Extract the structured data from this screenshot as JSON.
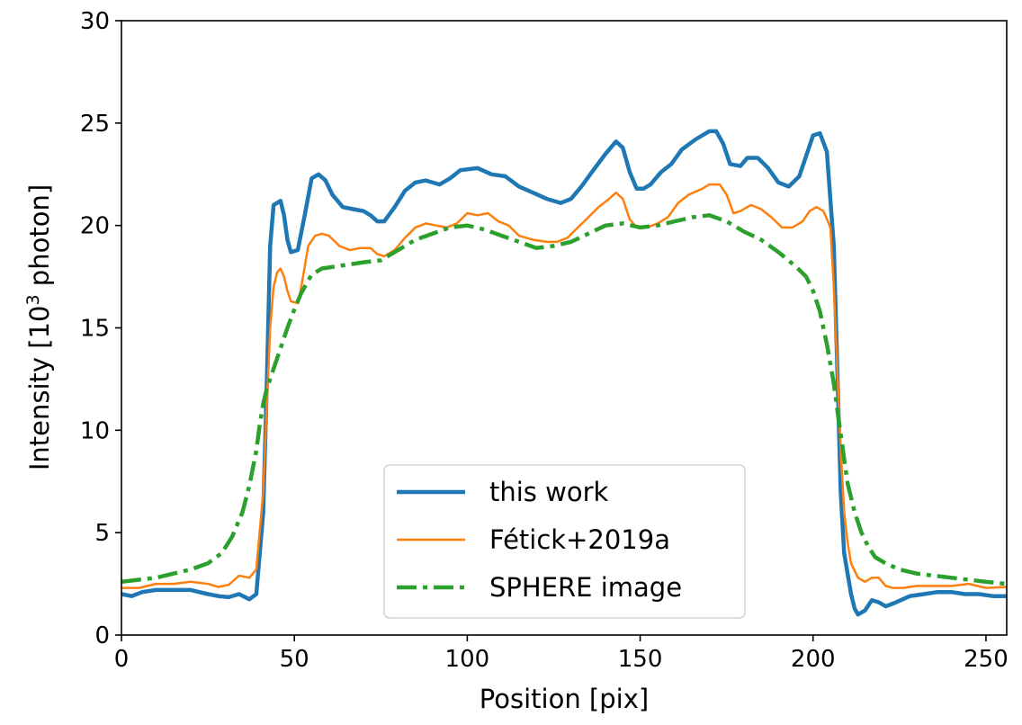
{
  "chart_data": {
    "type": "line",
    "title": "",
    "xlabel": "Position [pix]",
    "ylabel_main": "Intensity [10",
    "ylabel_sup": "3",
    "ylabel_tail": " photon]",
    "xlim": [
      0,
      256
    ],
    "ylim": [
      0,
      30
    ],
    "xticks": [
      0,
      50,
      100,
      150,
      200,
      250
    ],
    "yticks": [
      0,
      5,
      10,
      15,
      20,
      25,
      30
    ],
    "grid": false,
    "legend_position": "lower-center",
    "series": [
      {
        "name": "this work",
        "color": "#1f77b4",
        "style": "solid-thick",
        "points": [
          [
            0,
            2.0
          ],
          [
            3,
            1.9
          ],
          [
            6,
            2.1
          ],
          [
            10,
            2.2
          ],
          [
            15,
            2.2
          ],
          [
            20,
            2.2
          ],
          [
            25,
            2.0
          ],
          [
            28,
            1.9
          ],
          [
            31,
            1.85
          ],
          [
            34,
            2.0
          ],
          [
            37,
            1.75
          ],
          [
            39,
            2.0
          ],
          [
            41,
            6.0
          ],
          [
            42,
            12.0
          ],
          [
            43,
            19.0
          ],
          [
            44,
            21.0
          ],
          [
            46,
            21.2
          ],
          [
            47,
            20.5
          ],
          [
            48,
            19.3
          ],
          [
            49,
            18.7
          ],
          [
            51,
            18.8
          ],
          [
            53,
            20.5
          ],
          [
            55,
            22.3
          ],
          [
            57,
            22.5
          ],
          [
            59,
            22.2
          ],
          [
            61,
            21.5
          ],
          [
            64,
            20.9
          ],
          [
            67,
            20.8
          ],
          [
            70,
            20.7
          ],
          [
            72,
            20.5
          ],
          [
            74,
            20.2
          ],
          [
            76,
            20.2
          ],
          [
            79,
            20.9
          ],
          [
            82,
            21.7
          ],
          [
            85,
            22.1
          ],
          [
            88,
            22.2
          ],
          [
            92,
            22.0
          ],
          [
            95,
            22.3
          ],
          [
            98,
            22.7
          ],
          [
            103,
            22.8
          ],
          [
            107,
            22.5
          ],
          [
            111,
            22.4
          ],
          [
            115,
            21.9
          ],
          [
            119,
            21.6
          ],
          [
            123,
            21.3
          ],
          [
            127,
            21.1
          ],
          [
            130,
            21.3
          ],
          [
            133,
            21.9
          ],
          [
            136,
            22.6
          ],
          [
            140,
            23.5
          ],
          [
            143,
            24.1
          ],
          [
            145,
            23.8
          ],
          [
            147,
            22.6
          ],
          [
            149,
            21.8
          ],
          [
            151,
            21.8
          ],
          [
            153,
            22.0
          ],
          [
            156,
            22.6
          ],
          [
            159,
            23.0
          ],
          [
            162,
            23.7
          ],
          [
            166,
            24.2
          ],
          [
            170,
            24.6
          ],
          [
            172,
            24.6
          ],
          [
            174,
            24.0
          ],
          [
            176,
            23.0
          ],
          [
            179,
            22.9
          ],
          [
            181,
            23.3
          ],
          [
            184,
            23.3
          ],
          [
            187,
            22.8
          ],
          [
            190,
            22.1
          ],
          [
            193,
            21.9
          ],
          [
            196,
            22.4
          ],
          [
            198,
            23.4
          ],
          [
            200,
            24.4
          ],
          [
            202,
            24.5
          ],
          [
            204,
            23.6
          ],
          [
            206,
            19.0
          ],
          [
            207,
            13.0
          ],
          [
            208,
            7.0
          ],
          [
            209,
            4.0
          ],
          [
            211,
            2.0
          ],
          [
            212,
            1.3
          ],
          [
            213,
            1.0
          ],
          [
            215,
            1.2
          ],
          [
            217,
            1.7
          ],
          [
            219,
            1.6
          ],
          [
            221,
            1.4
          ],
          [
            224,
            1.6
          ],
          [
            228,
            1.9
          ],
          [
            232,
            2.0
          ],
          [
            236,
            2.1
          ],
          [
            240,
            2.1
          ],
          [
            244,
            2.0
          ],
          [
            248,
            2.0
          ],
          [
            252,
            1.9
          ],
          [
            256,
            1.9
          ]
        ]
      },
      {
        "name": "Fétick+2019a",
        "color": "#ff7f0e",
        "style": "solid-thin",
        "points": [
          [
            0,
            2.3
          ],
          [
            5,
            2.3
          ],
          [
            10,
            2.5
          ],
          [
            15,
            2.5
          ],
          [
            20,
            2.6
          ],
          [
            25,
            2.5
          ],
          [
            28,
            2.35
          ],
          [
            31,
            2.45
          ],
          [
            34,
            2.9
          ],
          [
            37,
            2.8
          ],
          [
            39,
            3.2
          ],
          [
            41,
            7.0
          ],
          [
            42,
            11.0
          ],
          [
            43,
            15.0
          ],
          [
            44,
            17.0
          ],
          [
            45,
            17.7
          ],
          [
            46,
            17.9
          ],
          [
            47,
            17.5
          ],
          [
            48,
            16.8
          ],
          [
            49,
            16.3
          ],
          [
            51,
            16.2
          ],
          [
            52,
            17.0
          ],
          [
            54,
            19.0
          ],
          [
            56,
            19.5
          ],
          [
            58,
            19.6
          ],
          [
            60,
            19.5
          ],
          [
            63,
            19.0
          ],
          [
            66,
            18.8
          ],
          [
            69,
            18.9
          ],
          [
            72,
            18.9
          ],
          [
            74,
            18.6
          ],
          [
            76,
            18.5
          ],
          [
            79,
            18.8
          ],
          [
            82,
            19.4
          ],
          [
            85,
            19.9
          ],
          [
            88,
            20.1
          ],
          [
            91,
            20.0
          ],
          [
            94,
            19.9
          ],
          [
            97,
            20.1
          ],
          [
            100,
            20.6
          ],
          [
            103,
            20.5
          ],
          [
            106,
            20.6
          ],
          [
            109,
            20.2
          ],
          [
            112,
            20.0
          ],
          [
            115,
            19.5
          ],
          [
            119,
            19.3
          ],
          [
            123,
            19.2
          ],
          [
            126,
            19.2
          ],
          [
            129,
            19.4
          ],
          [
            132,
            19.9
          ],
          [
            135,
            20.4
          ],
          [
            138,
            20.9
          ],
          [
            141,
            21.3
          ],
          [
            143,
            21.6
          ],
          [
            145,
            21.3
          ],
          [
            147,
            20.3
          ],
          [
            149,
            19.9
          ],
          [
            152,
            19.9
          ],
          [
            155,
            20.1
          ],
          [
            158,
            20.4
          ],
          [
            161,
            21.1
          ],
          [
            164,
            21.5
          ],
          [
            168,
            21.8
          ],
          [
            170,
            22.0
          ],
          [
            173,
            22.0
          ],
          [
            175,
            21.5
          ],
          [
            177,
            20.6
          ],
          [
            179,
            20.7
          ],
          [
            182,
            21.0
          ],
          [
            185,
            20.8
          ],
          [
            188,
            20.4
          ],
          [
            191,
            19.9
          ],
          [
            194,
            19.9
          ],
          [
            197,
            20.2
          ],
          [
            199,
            20.7
          ],
          [
            201,
            20.9
          ],
          [
            203,
            20.7
          ],
          [
            205,
            19.9
          ],
          [
            206,
            17.0
          ],
          [
            207,
            13.0
          ],
          [
            208,
            9.0
          ],
          [
            209,
            6.0
          ],
          [
            210,
            4.5
          ],
          [
            211,
            3.5
          ],
          [
            213,
            2.8
          ],
          [
            215,
            2.6
          ],
          [
            217,
            2.8
          ],
          [
            219,
            2.8
          ],
          [
            221,
            2.4
          ],
          [
            223,
            2.3
          ],
          [
            226,
            2.3
          ],
          [
            230,
            2.4
          ],
          [
            235,
            2.4
          ],
          [
            240,
            2.4
          ],
          [
            245,
            2.5
          ],
          [
            250,
            2.3
          ],
          [
            256,
            2.35
          ]
        ]
      },
      {
        "name": "SPHERE image",
        "color": "#2ca02c",
        "style": "dashdot-thick",
        "points": [
          [
            0,
            2.6
          ],
          [
            5,
            2.7
          ],
          [
            10,
            2.8
          ],
          [
            15,
            3.0
          ],
          [
            20,
            3.2
          ],
          [
            25,
            3.5
          ],
          [
            29,
            4.0
          ],
          [
            32,
            4.8
          ],
          [
            35,
            6.0
          ],
          [
            37,
            7.3
          ],
          [
            39,
            9.0
          ],
          [
            40,
            10.3
          ],
          [
            41,
            11.3
          ],
          [
            42,
            12.0
          ],
          [
            44,
            13.0
          ],
          [
            46,
            14.0
          ],
          [
            48,
            15.0
          ],
          [
            50,
            15.9
          ],
          [
            52,
            16.7
          ],
          [
            55,
            17.6
          ],
          [
            58,
            17.9
          ],
          [
            62,
            18.0
          ],
          [
            66,
            18.1
          ],
          [
            70,
            18.2
          ],
          [
            75,
            18.3
          ],
          [
            80,
            18.8
          ],
          [
            85,
            19.3
          ],
          [
            90,
            19.6
          ],
          [
            95,
            19.9
          ],
          [
            100,
            20.0
          ],
          [
            105,
            19.8
          ],
          [
            110,
            19.5
          ],
          [
            115,
            19.2
          ],
          [
            120,
            18.9
          ],
          [
            125,
            19.0
          ],
          [
            130,
            19.2
          ],
          [
            135,
            19.6
          ],
          [
            140,
            20.0
          ],
          [
            145,
            20.1
          ],
          [
            150,
            19.9
          ],
          [
            155,
            20.0
          ],
          [
            160,
            20.2
          ],
          [
            165,
            20.4
          ],
          [
            170,
            20.5
          ],
          [
            175,
            20.2
          ],
          [
            180,
            19.7
          ],
          [
            185,
            19.3
          ],
          [
            190,
            18.7
          ],
          [
            195,
            18.0
          ],
          [
            198,
            17.5
          ],
          [
            200,
            16.8
          ],
          [
            202,
            15.8
          ],
          [
            204,
            14.2
          ],
          [
            206,
            12.3
          ],
          [
            207,
            11.0
          ],
          [
            208,
            9.8
          ],
          [
            209,
            8.6
          ],
          [
            210,
            7.4
          ],
          [
            212,
            6.0
          ],
          [
            214,
            5.0
          ],
          [
            216,
            4.3
          ],
          [
            218,
            3.8
          ],
          [
            221,
            3.5
          ],
          [
            225,
            3.2
          ],
          [
            230,
            3.0
          ],
          [
            235,
            2.9
          ],
          [
            240,
            2.8
          ],
          [
            245,
            2.7
          ],
          [
            250,
            2.6
          ],
          [
            256,
            2.5
          ]
        ]
      }
    ]
  }
}
